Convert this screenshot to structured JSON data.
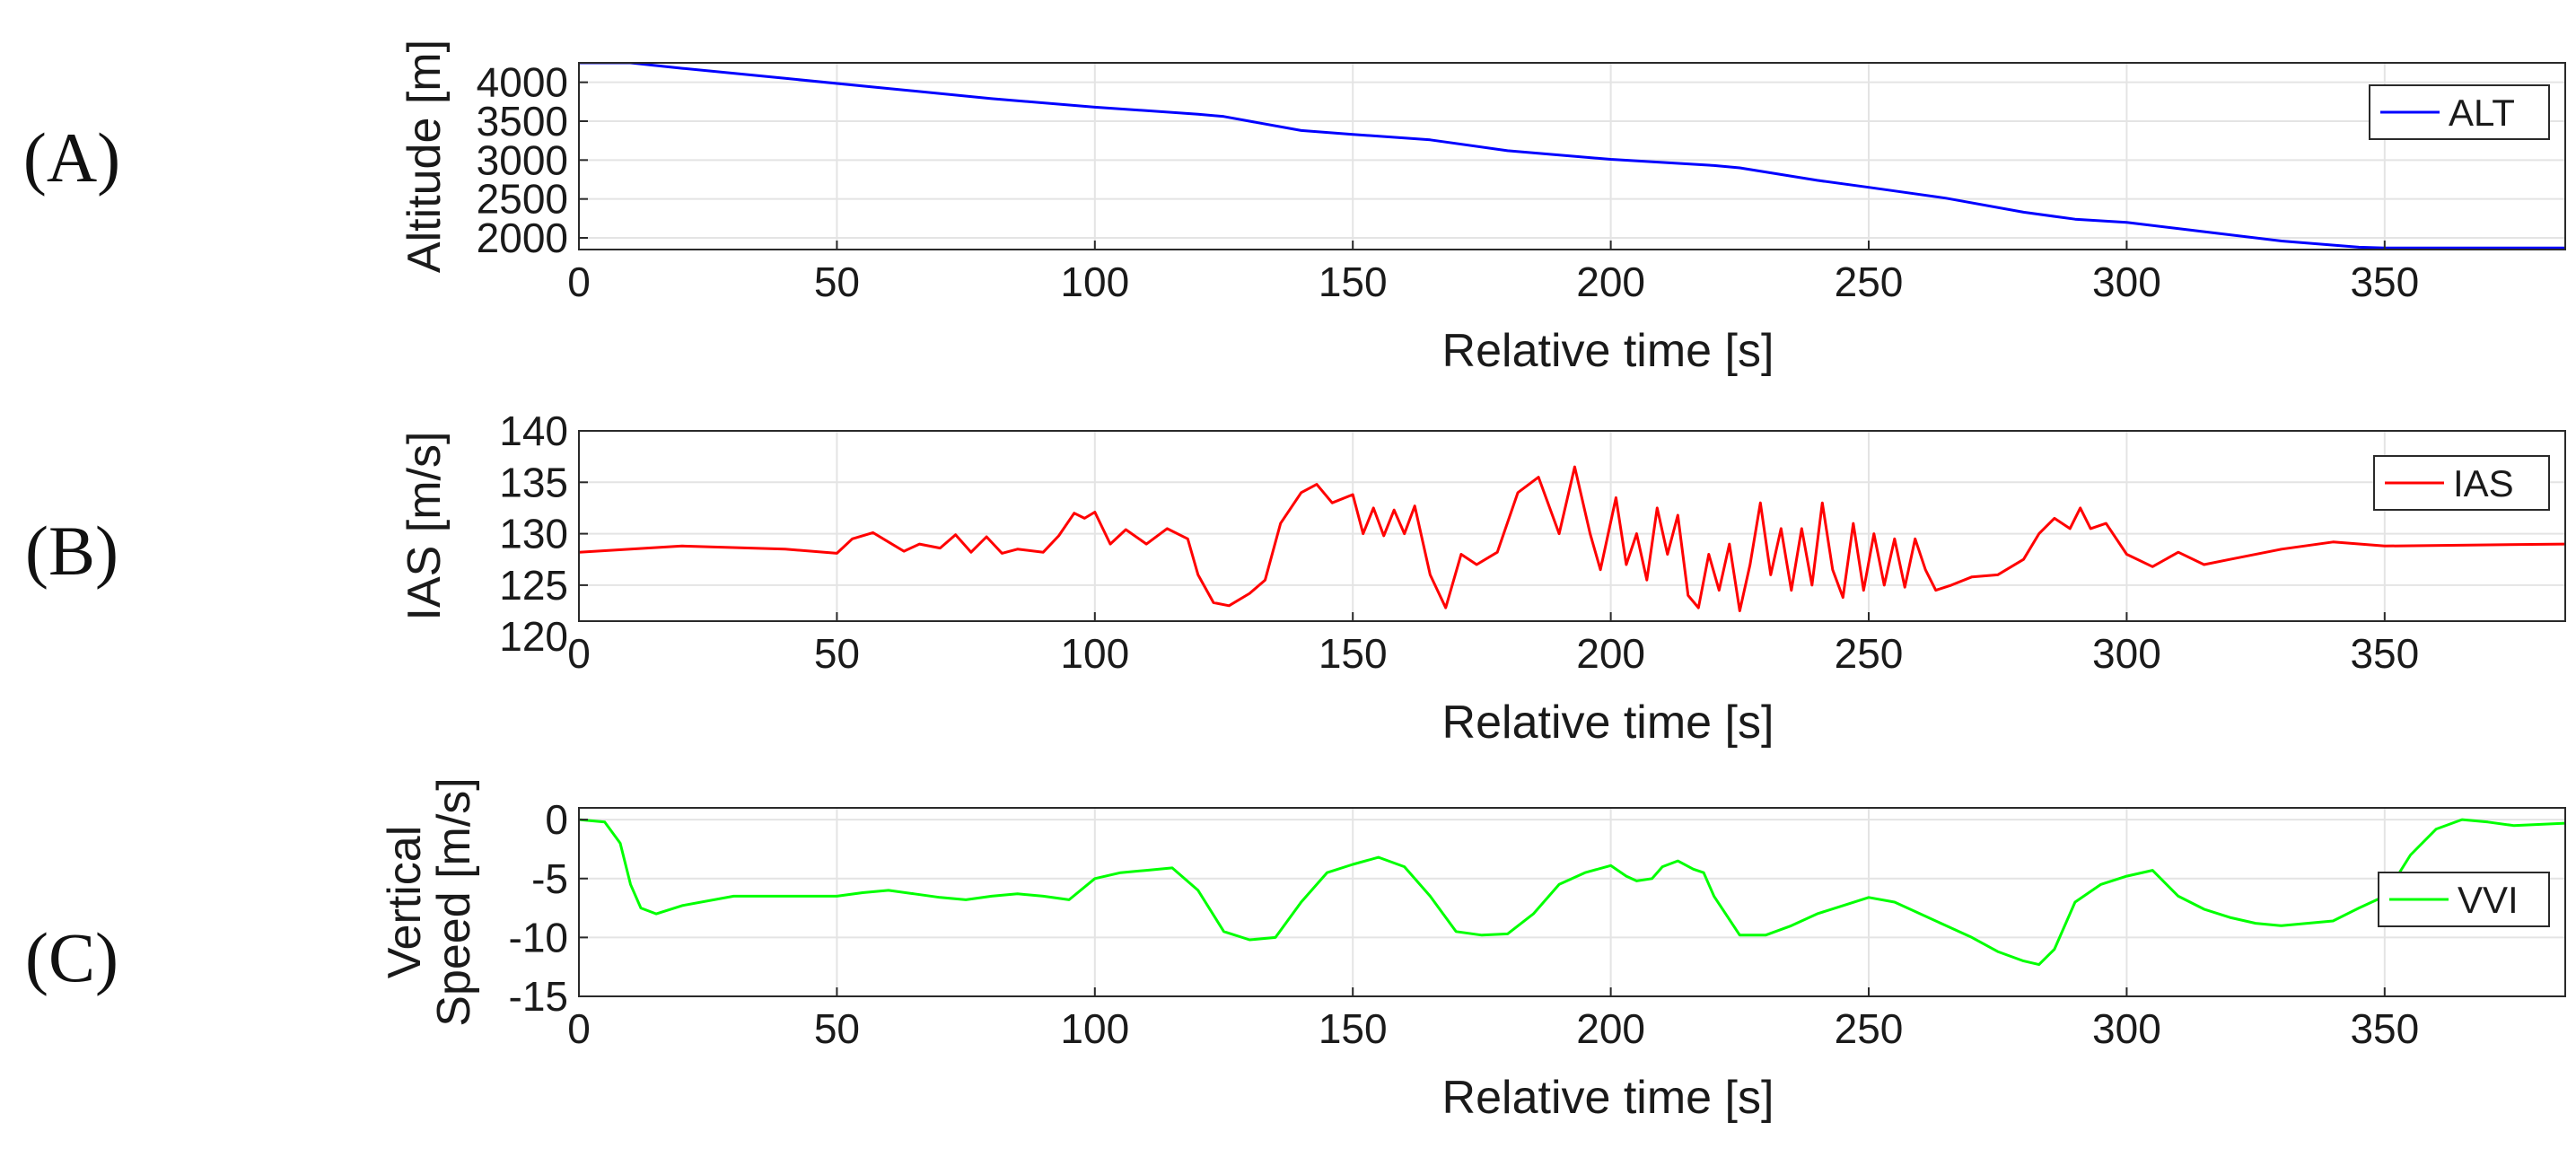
{
  "chart_data": [
    {
      "type": "line",
      "panel_label": "(A)",
      "xlabel": "Relative time [s]",
      "ylabel": [
        "Altitude [m]"
      ],
      "xlim": [
        0,
        385
      ],
      "ylim": [
        1850,
        4250
      ],
      "xticks": [
        0,
        50,
        100,
        150,
        200,
        250,
        300,
        350
      ],
      "yticks": [
        2000,
        2500,
        3000,
        3500,
        4000
      ],
      "grid": true,
      "legend_position": "top-right",
      "series": [
        {
          "name": "ALT",
          "color": "#0000ff",
          "x": [
            0,
            10,
            20,
            40,
            60,
            80,
            100,
            120,
            125,
            140,
            150,
            165,
            180,
            200,
            220,
            225,
            240,
            250,
            265,
            280,
            290,
            300,
            315,
            330,
            345,
            350,
            385
          ],
          "y": [
            4250,
            4250,
            4180,
            4050,
            3920,
            3790,
            3680,
            3590,
            3560,
            3380,
            3330,
            3260,
            3120,
            3010,
            2930,
            2900,
            2740,
            2650,
            2510,
            2330,
            2240,
            2200,
            2080,
            1960,
            1880,
            1870,
            1870
          ]
        }
      ]
    },
    {
      "type": "line",
      "panel_label": "(B)",
      "xlabel": "Relative time [s]",
      "ylabel": [
        "IAS [m/s]"
      ],
      "xlim": [
        0,
        385
      ],
      "ylim": [
        121.5,
        140
      ],
      "xticks": [
        0,
        50,
        100,
        150,
        200,
        250,
        300,
        350
      ],
      "yticks": [
        120,
        125,
        130,
        135,
        140
      ],
      "grid": true,
      "legend_position": "top-right",
      "series": [
        {
          "name": "IAS",
          "color": "#ff0000",
          "x": [
            0,
            20,
            40,
            50,
            53,
            57,
            60,
            63,
            66,
            70,
            73,
            76,
            79,
            82,
            85,
            90,
            93,
            96,
            98,
            100,
            103,
            106,
            110,
            114,
            118,
            120,
            123,
            126,
            130,
            133,
            136,
            140,
            143,
            146,
            150,
            152,
            154,
            156,
            158,
            160,
            162,
            165,
            168,
            171,
            174,
            178,
            182,
            186,
            190,
            193,
            196,
            198,
            201,
            203,
            205,
            207,
            209,
            211,
            213,
            215,
            217,
            219,
            221,
            223,
            225,
            227,
            229,
            231,
            233,
            235,
            237,
            239,
            241,
            243,
            245,
            247,
            249,
            251,
            253,
            255,
            257,
            259,
            261,
            263,
            266,
            270,
            275,
            280,
            283,
            286,
            289,
            291,
            293,
            296,
            300,
            305,
            310,
            315,
            320,
            330,
            340,
            350,
            385
          ],
          "y": [
            128.2,
            128.8,
            128.5,
            128.1,
            129.5,
            130.1,
            129.2,
            128.3,
            129.0,
            128.6,
            129.9,
            128.2,
            129.7,
            128.1,
            128.5,
            128.2,
            129.8,
            132.0,
            131.5,
            132.1,
            129.0,
            130.4,
            129.0,
            130.5,
            129.5,
            126.0,
            123.3,
            123.0,
            124.2,
            125.5,
            131.0,
            134.0,
            134.8,
            133.0,
            133.8,
            130.0,
            132.5,
            129.8,
            132.3,
            130.0,
            132.7,
            126.0,
            122.8,
            128.0,
            127.0,
            128.2,
            134.0,
            135.5,
            130.0,
            136.5,
            130.0,
            126.5,
            133.5,
            127.0,
            130.0,
            125.5,
            132.5,
            128.0,
            131.8,
            124.0,
            122.8,
            128.0,
            124.5,
            129.0,
            122.5,
            127.0,
            133.0,
            126.0,
            130.5,
            124.5,
            130.5,
            125.0,
            133.0,
            126.5,
            123.8,
            131.0,
            124.5,
            130.0,
            125.0,
            129.5,
            124.8,
            129.5,
            126.5,
            124.5,
            125.0,
            125.8,
            126.0,
            127.5,
            130.0,
            131.5,
            130.5,
            132.5,
            130.5,
            131.0,
            128.0,
            126.8,
            128.2,
            127.0,
            127.5,
            128.5,
            129.2,
            128.8,
            129.0
          ]
        }
      ]
    },
    {
      "type": "line",
      "panel_label": "(C)",
      "xlabel": "Relative time [s]",
      "ylabel": [
        "Vertical",
        "Speed [m/s]"
      ],
      "xlim": [
        0,
        385
      ],
      "ylim": [
        -15,
        1
      ],
      "xticks": [
        0,
        50,
        100,
        150,
        200,
        250,
        300,
        350
      ],
      "yticks": [
        0,
        -5,
        -10,
        -15
      ],
      "grid": true,
      "legend_position": "right",
      "series": [
        {
          "name": "VVI",
          "color": "#00ff00",
          "x": [
            0,
            5,
            8,
            10,
            12,
            15,
            20,
            30,
            40,
            50,
            55,
            60,
            65,
            70,
            75,
            80,
            85,
            90,
            95,
            100,
            105,
            110,
            115,
            120,
            125,
            130,
            135,
            140,
            145,
            150,
            155,
            160,
            165,
            170,
            175,
            180,
            185,
            190,
            195,
            200,
            203,
            205,
            208,
            210,
            213,
            216,
            218,
            220,
            225,
            230,
            235,
            240,
            245,
            250,
            255,
            260,
            265,
            270,
            275,
            280,
            283,
            286,
            290,
            295,
            300,
            305,
            310,
            315,
            320,
            325,
            330,
            340,
            345,
            350,
            355,
            360,
            365,
            370,
            375,
            385
          ],
          "y": [
            0,
            -0.2,
            -2.0,
            -5.5,
            -7.5,
            -8.0,
            -7.3,
            -6.5,
            -6.5,
            -6.5,
            -6.2,
            -6.0,
            -6.3,
            -6.6,
            -6.8,
            -6.5,
            -6.3,
            -6.5,
            -6.8,
            -5.0,
            -4.5,
            -4.3,
            -4.1,
            -6.0,
            -9.5,
            -10.2,
            -10.0,
            -7.0,
            -4.5,
            -3.8,
            -3.2,
            -4.0,
            -6.5,
            -9.5,
            -9.8,
            -9.7,
            -8.0,
            -5.5,
            -4.5,
            -3.9,
            -4.8,
            -5.2,
            -5.0,
            -4.0,
            -3.5,
            -4.2,
            -4.5,
            -6.5,
            -9.8,
            -9.8,
            -9.0,
            -8.0,
            -7.3,
            -6.6,
            -7.0,
            -8.0,
            -9.0,
            -10.0,
            -11.2,
            -12.0,
            -12.3,
            -11.0,
            -7.0,
            -5.5,
            -4.8,
            -4.3,
            -6.5,
            -7.6,
            -8.3,
            -8.8,
            -9.0,
            -8.6,
            -7.5,
            -6.5,
            -3.0,
            -0.8,
            0.0,
            -0.2,
            -0.5,
            -0.3
          ]
        }
      ]
    }
  ]
}
